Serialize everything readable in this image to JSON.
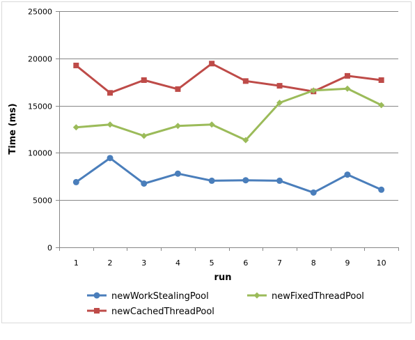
{
  "chart_data": {
    "type": "line",
    "title": "",
    "xlabel": "run",
    "ylabel": "Time (ms)",
    "x": [
      1,
      2,
      3,
      4,
      5,
      6,
      7,
      8,
      9,
      10
    ],
    "ylim": [
      0,
      25000
    ],
    "yticks": [
      0,
      5000,
      10000,
      15000,
      20000,
      25000
    ],
    "grid": "horizontal",
    "legend": "bottom",
    "series": [
      {
        "name": "newWorkStealingPool",
        "color": "#4a7ebb",
        "marker": "circle",
        "values": [
          6900,
          9450,
          6750,
          7800,
          7050,
          7100,
          7050,
          5800,
          7700,
          6100
        ]
      },
      {
        "name": "newFixedThreadPool",
        "color": "#9bbb59",
        "marker": "diamond",
        "values": [
          12700,
          13000,
          11800,
          12850,
          13000,
          11350,
          15300,
          16600,
          16800,
          15050
        ]
      },
      {
        "name": "newCachedThreadPool",
        "color": "#be4b48",
        "marker": "square",
        "values": [
          19250,
          16350,
          17700,
          16750,
          19450,
          17600,
          17100,
          16500,
          18150,
          17700
        ]
      }
    ]
  }
}
